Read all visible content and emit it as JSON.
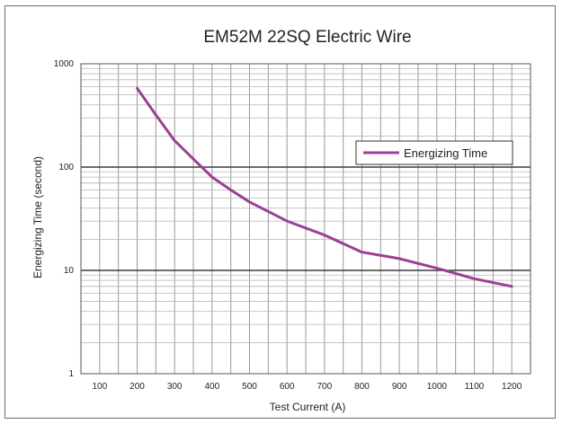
{
  "chart_data": {
    "type": "line",
    "title": "EM52M 22SQ Electric Wire",
    "xlabel": "Test Current (A)",
    "ylabel": "Energizing Time (second)",
    "yscale": "log",
    "xlim": [
      50,
      1250
    ],
    "ylim": [
      1,
      1000
    ],
    "x_ticks": [
      100,
      200,
      300,
      400,
      500,
      600,
      700,
      800,
      900,
      1000,
      1100,
      1200
    ],
    "y_ticks": [
      1,
      10,
      100,
      1000
    ],
    "y_tick_labels": [
      "1",
      "10",
      "100",
      "1000"
    ],
    "grid": true,
    "legend": {
      "position": "right",
      "entries": [
        "Energizing Time"
      ]
    },
    "series": [
      {
        "name": "Energizing Time",
        "color": "#9b3f97",
        "x": [
          200,
          250,
          300,
          350,
          400,
          450,
          500,
          600,
          700,
          800,
          900,
          1000,
          1100,
          1200
        ],
        "y": [
          580,
          320,
          180,
          120,
          80,
          60,
          46,
          30,
          22,
          15,
          13,
          10.5,
          8.3,
          7
        ]
      }
    ]
  }
}
